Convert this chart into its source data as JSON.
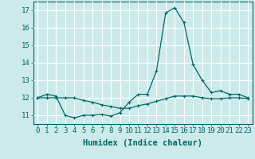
{
  "title": "",
  "xlabel": "Humidex (Indice chaleur)",
  "x_values": [
    0,
    1,
    2,
    3,
    4,
    5,
    6,
    7,
    8,
    9,
    10,
    11,
    12,
    13,
    14,
    15,
    16,
    17,
    18,
    19,
    20,
    21,
    22,
    23
  ],
  "line1_y": [
    12.0,
    12.2,
    12.1,
    11.0,
    10.85,
    11.0,
    11.0,
    11.05,
    10.95,
    11.15,
    11.75,
    12.2,
    12.2,
    13.55,
    16.85,
    17.15,
    16.3,
    13.9,
    13.0,
    12.3,
    12.4,
    12.2,
    12.2,
    12.0
  ],
  "line2_y": [
    12.0,
    12.0,
    12.0,
    12.0,
    12.0,
    11.85,
    11.75,
    11.6,
    11.5,
    11.4,
    11.4,
    11.55,
    11.65,
    11.8,
    11.95,
    12.1,
    12.1,
    12.1,
    12.0,
    11.95,
    11.95,
    12.0,
    12.0,
    11.95
  ],
  "line_color": "#006666",
  "marker": "+",
  "bg_color": "#cceaea",
  "grid_color": "#ffffff",
  "ylim": [
    10.5,
    17.5
  ],
  "yticks": [
    11,
    12,
    13,
    14,
    15,
    16,
    17
  ],
  "xlim": [
    -0.5,
    23.5
  ],
  "tick_label_fontsize": 6.5,
  "xlabel_fontsize": 7.5
}
